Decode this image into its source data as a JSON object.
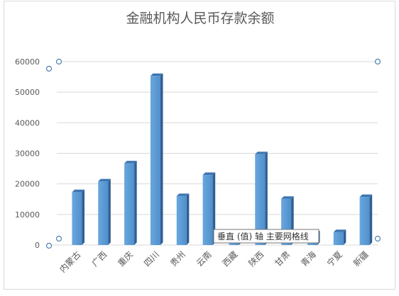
{
  "chart_data": {
    "type": "bar",
    "style": "3d-column",
    "title": "金融机构人民币存款余额",
    "xlabel": "",
    "ylabel": "",
    "categories": [
      "内蒙古",
      "广西",
      "重庆",
      "四川",
      "贵州",
      "云南",
      "西藏",
      "陕西",
      "甘肃",
      "青海",
      "宁夏",
      "新疆"
    ],
    "values": [
      17300,
      20800,
      26700,
      55300,
      16000,
      22900,
      2600,
      29700,
      15100,
      3800,
      4200,
      15700
    ],
    "yticks": [
      0,
      10000,
      20000,
      30000,
      40000,
      50000,
      60000
    ],
    "ylim": [
      0,
      60000
    ],
    "grid": true,
    "legend": "none",
    "bar_color": "#5b9bd5"
  },
  "tooltip": {
    "text": "垂直 (值) 轴 主要网格线"
  }
}
